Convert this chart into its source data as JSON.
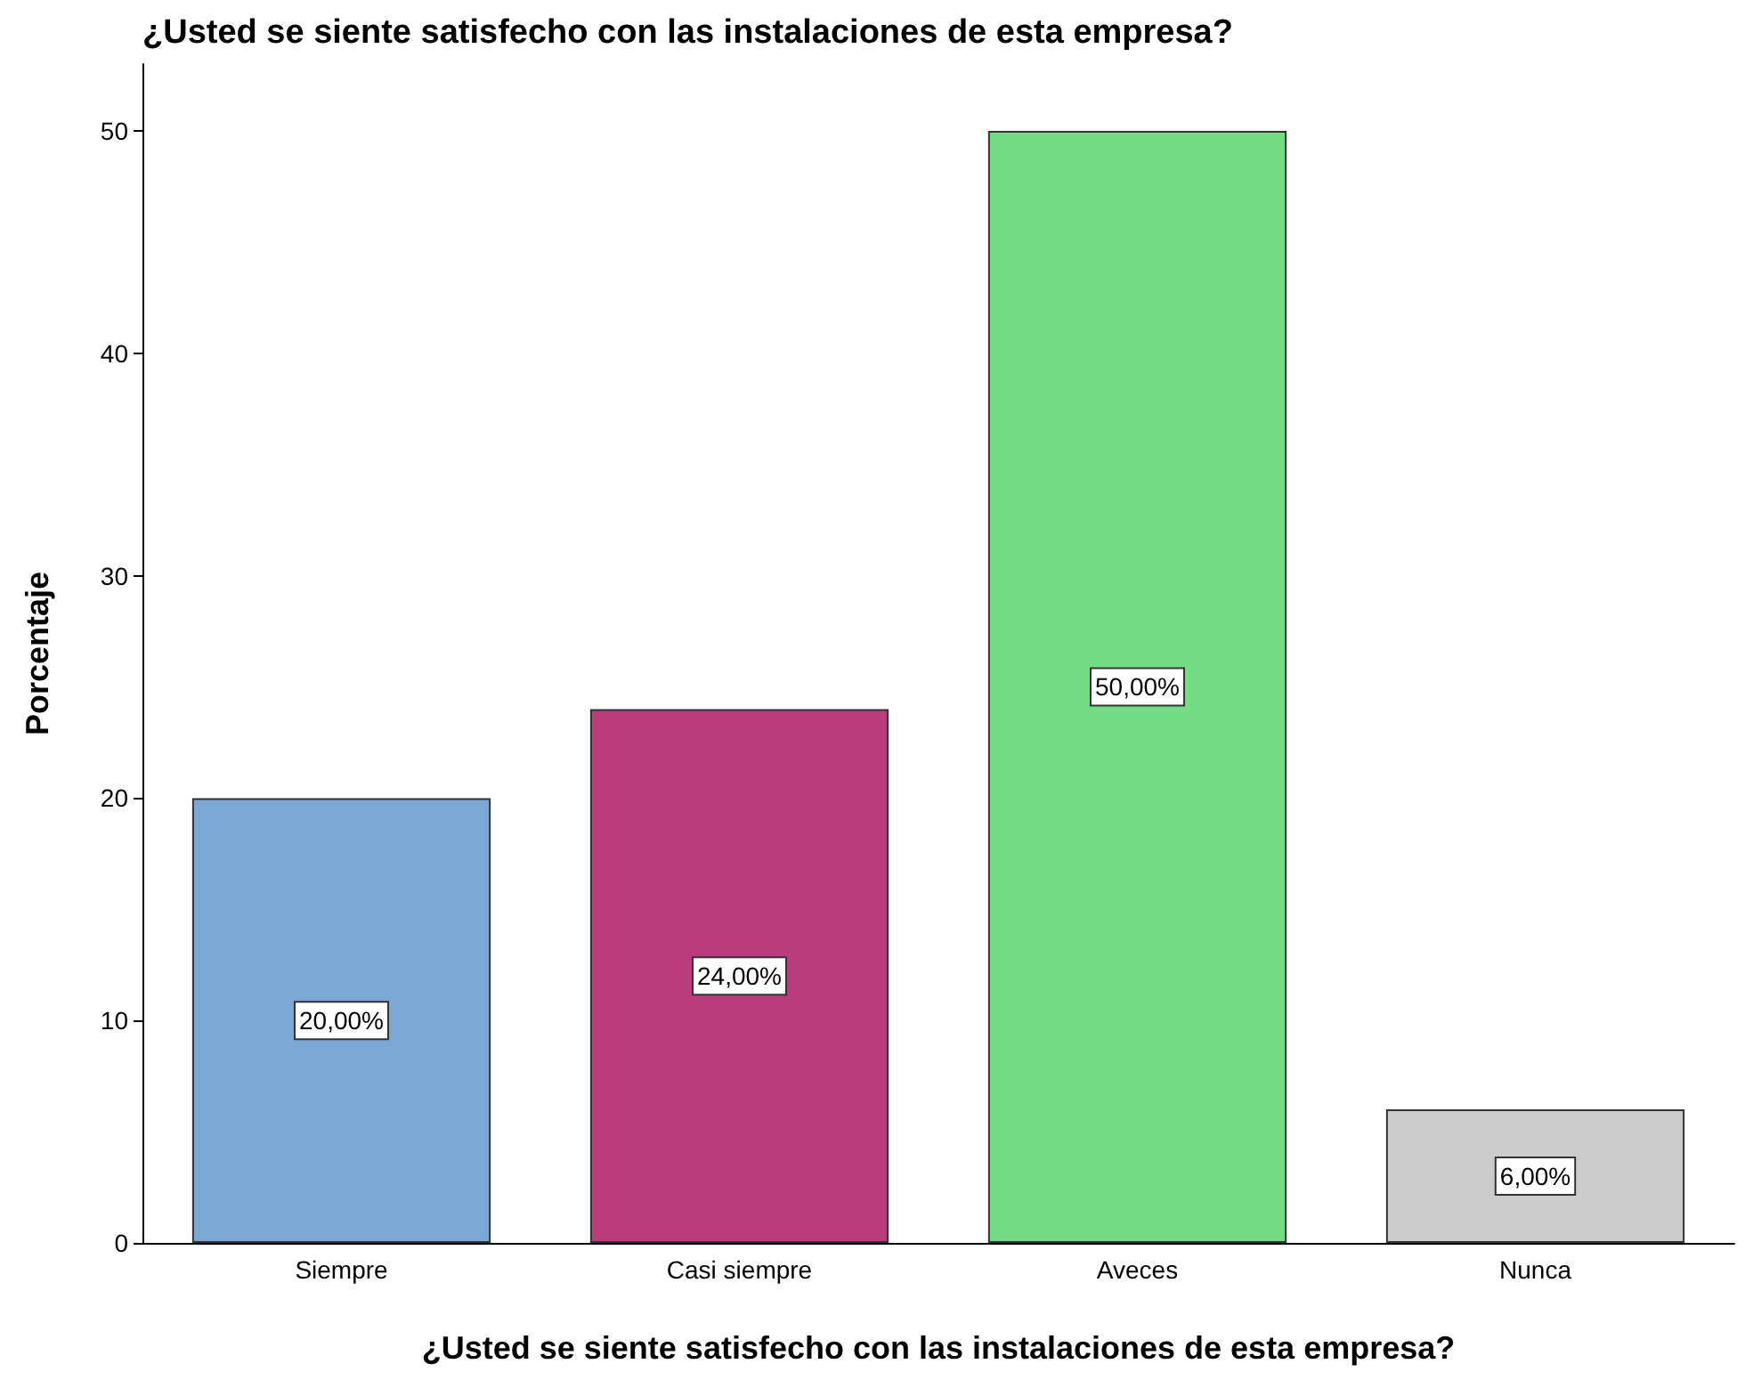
{
  "chart_data": {
    "type": "bar",
    "title": "¿Usted se siente satisfecho con las instalaciones de esta empresa?",
    "xlabel": "¿Usted se siente satisfecho con las instalaciones de esta empresa?",
    "ylabel": "Porcentaje",
    "categories": [
      "Siempre",
      "Casi siempre",
      "Aveces",
      "Nunca"
    ],
    "values": [
      20,
      24,
      50,
      6
    ],
    "colors": [
      "#7ba7d4",
      "#b83d7a",
      "#72dd85",
      "#cccccc"
    ],
    "value_labels": [
      "20,00%",
      "24,00%",
      "50,00%",
      "6,00%"
    ],
    "ylim": [
      0,
      53
    ],
    "yticks": [
      0,
      10,
      20,
      30,
      40,
      50
    ],
    "grid": false
  }
}
